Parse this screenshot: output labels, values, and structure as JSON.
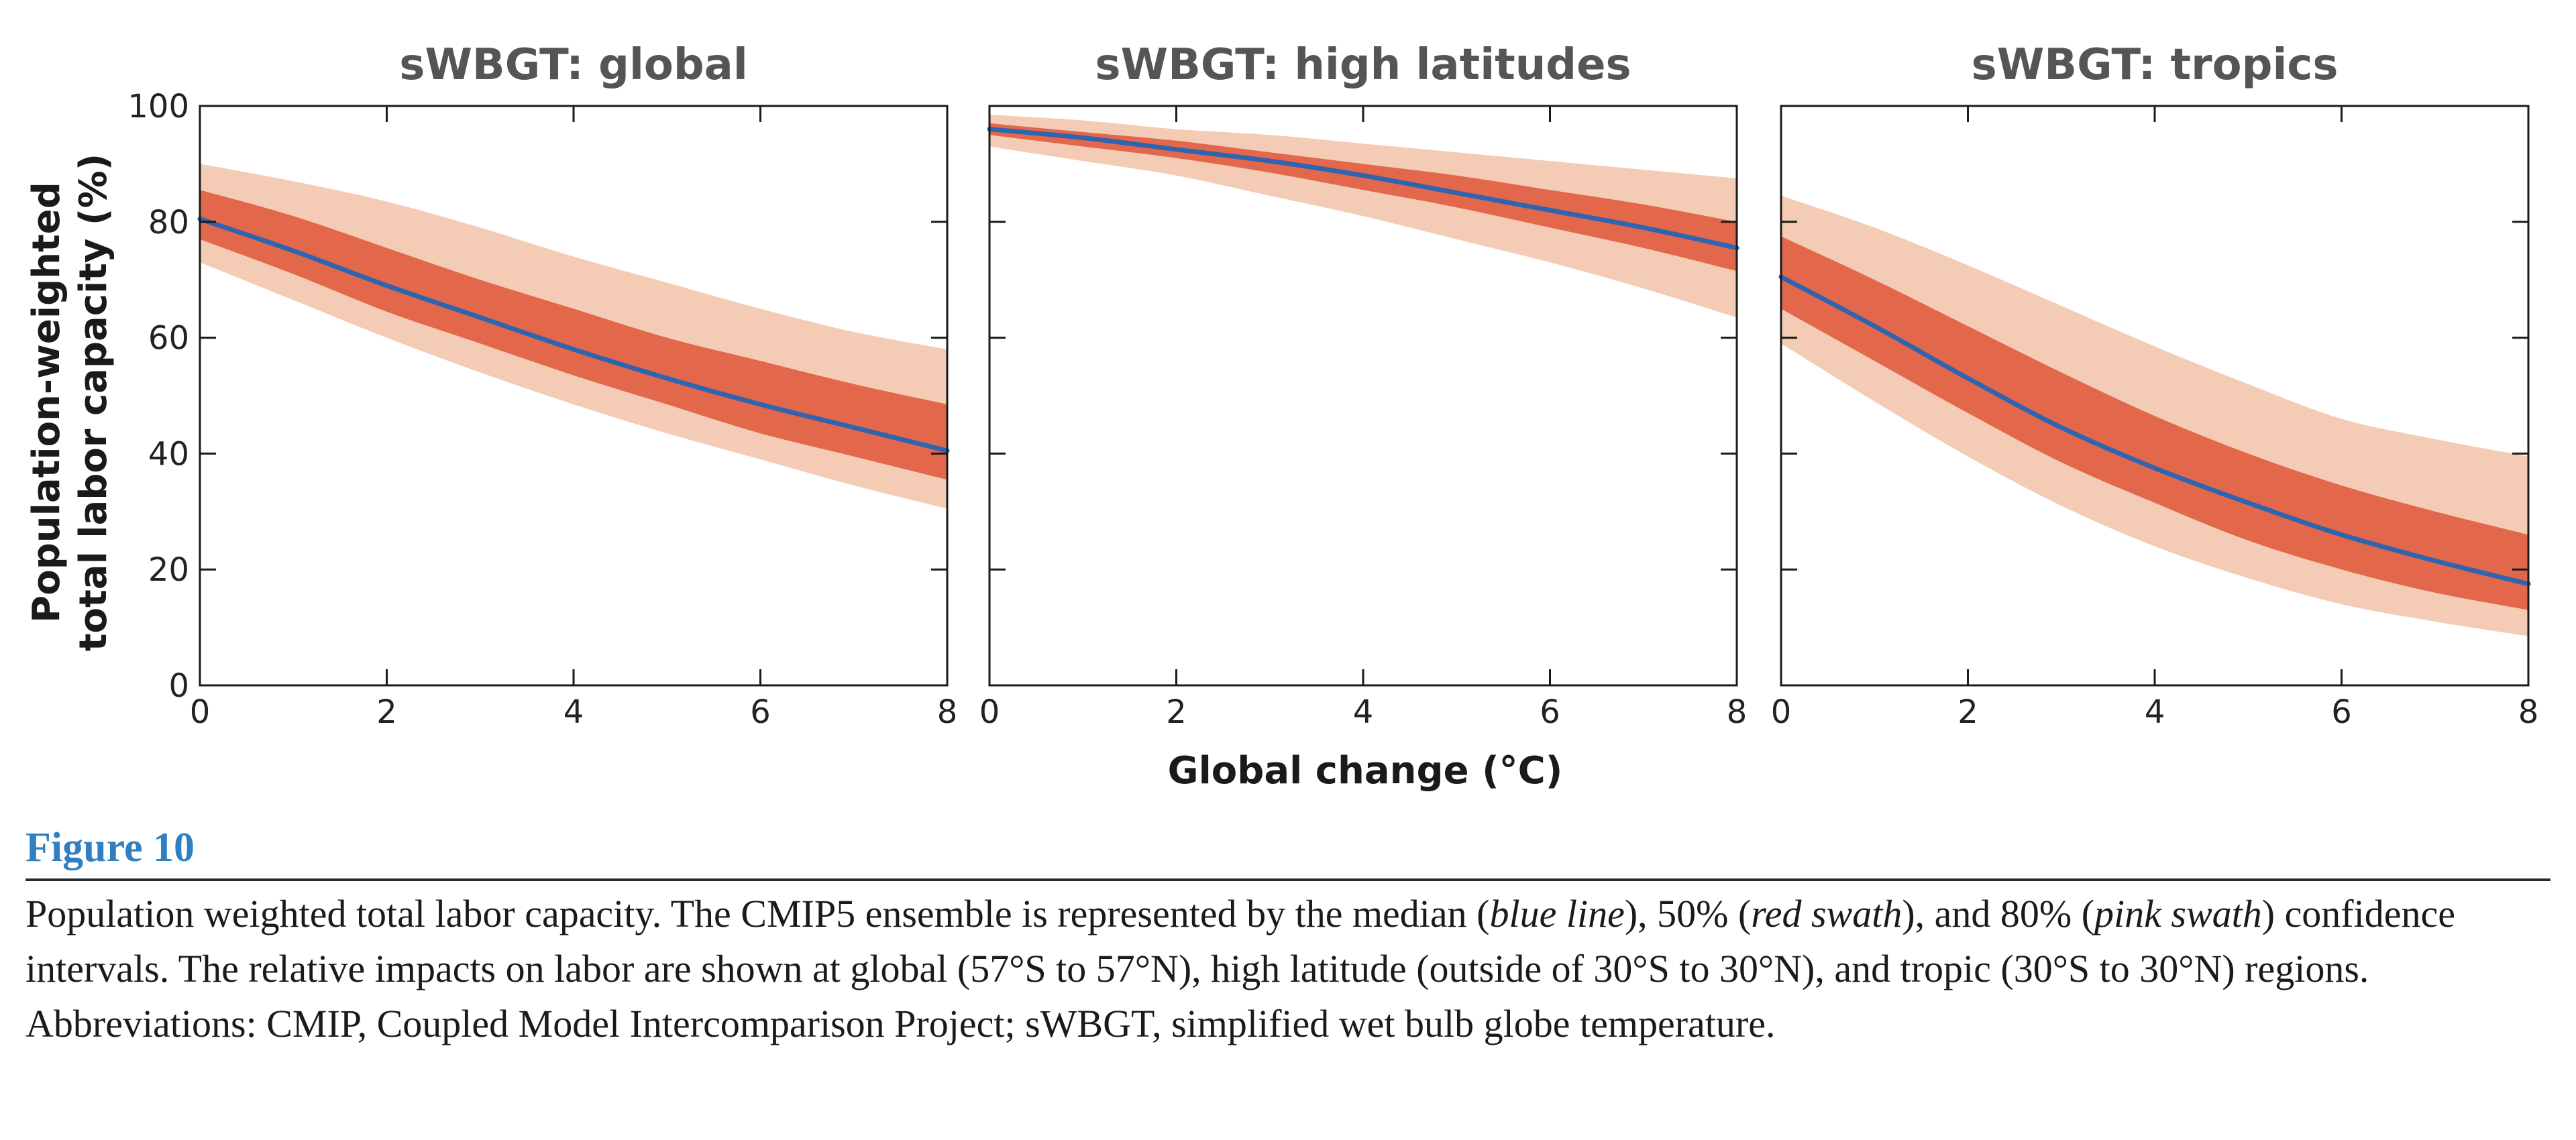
{
  "chart_data": [
    {
      "type": "area",
      "title": "sWBGT: global",
      "x": [
        0,
        1,
        2,
        3,
        4,
        5,
        6,
        7,
        8
      ],
      "xlim": [
        0,
        8
      ],
      "ylim": [
        0,
        100
      ],
      "xticks": [
        "0",
        "2",
        "4",
        "6",
        "8"
      ],
      "yticks": [
        "0",
        "20",
        "40",
        "60",
        "80",
        "100"
      ],
      "series": [
        {
          "name": "median",
          "values": [
            80.5,
            75,
            69,
            63.5,
            58,
            53,
            48.5,
            44.5,
            40.5
          ]
        },
        {
          "name": "50% low",
          "values": [
            77,
            71,
            64.5,
            59,
            53.5,
            48.5,
            43.5,
            39.5,
            35.5
          ]
        },
        {
          "name": "50% high",
          "values": [
            85.5,
            81,
            75.5,
            70,
            65,
            60,
            56,
            52,
            48.5
          ]
        },
        {
          "name": "80% low",
          "values": [
            73,
            66.5,
            60,
            54,
            48.5,
            43.5,
            39,
            34.5,
            30.5
          ]
        },
        {
          "name": "80% high",
          "values": [
            90,
            87,
            83.5,
            79,
            74,
            69.5,
            65,
            61,
            58
          ]
        }
      ]
    },
    {
      "type": "area",
      "title": "sWBGT: high latitudes",
      "x": [
        0,
        1,
        2,
        3,
        4,
        5,
        6,
        7,
        8
      ],
      "xlim": [
        0,
        8
      ],
      "ylim": [
        0,
        100
      ],
      "xticks": [
        "0",
        "2",
        "4",
        "6",
        "8"
      ],
      "series": [
        {
          "name": "median",
          "values": [
            96,
            94.5,
            92.5,
            90.5,
            88,
            85,
            82,
            79,
            75.5
          ]
        },
        {
          "name": "50% low",
          "values": [
            95,
            93,
            91,
            88.5,
            85.5,
            82.5,
            79,
            75.5,
            71.5
          ]
        },
        {
          "name": "50% high",
          "values": [
            97,
            95.5,
            94,
            92,
            90,
            88,
            85.5,
            83,
            80
          ]
        },
        {
          "name": "80% low",
          "values": [
            93,
            90.5,
            88,
            84.5,
            81,
            77,
            73,
            68.5,
            63.5
          ]
        },
        {
          "name": "80% high",
          "values": [
            98.5,
            97.5,
            96,
            95,
            93.5,
            92,
            90.5,
            89,
            87.5
          ]
        }
      ]
    },
    {
      "type": "area",
      "title": "sWBGT: tropics",
      "x": [
        0,
        1,
        2,
        3,
        4,
        5,
        6,
        7,
        8
      ],
      "xlim": [
        0,
        8
      ],
      "ylim": [
        0,
        100
      ],
      "xticks": [
        "0",
        "2",
        "4",
        "6",
        "8"
      ],
      "series": [
        {
          "name": "median",
          "values": [
            70.5,
            62,
            53,
            44.5,
            37.5,
            31.5,
            26,
            21.5,
            17.5
          ]
        },
        {
          "name": "50% low",
          "values": [
            65,
            56,
            47,
            38.5,
            31.5,
            25,
            20,
            16,
            13
          ]
        },
        {
          "name": "50% high",
          "values": [
            77.5,
            70,
            62,
            54,
            46.5,
            40,
            34.5,
            30,
            26
          ]
        },
        {
          "name": "80% low",
          "values": [
            59,
            49,
            39.5,
            31,
            24,
            18.5,
            14,
            11,
            8.5
          ]
        },
        {
          "name": "80% high",
          "values": [
            84.5,
            79,
            72.5,
            65.5,
            58.5,
            52,
            46,
            42.5,
            39.5
          ]
        }
      ]
    }
  ],
  "colors": {
    "median": "#2e64b0",
    "band50": "#e2674b",
    "band80": "#f4cbb5",
    "frame": "#1a1a1a"
  },
  "axes": {
    "ylabel_line1": "Population-weighted",
    "ylabel_line2": "total labor capacity (%)",
    "xlabel": "Global change (°C)"
  },
  "figure": {
    "label": "Figure 10",
    "caption_parts": [
      {
        "text": "Population weighted total labor capacity. The CMIP5 ensemble is represented by the median (",
        "italic": false
      },
      {
        "text": "blue line",
        "italic": true
      },
      {
        "text": "), 50% (",
        "italic": false
      },
      {
        "text": "red swath",
        "italic": true
      },
      {
        "text": "), and 80% (",
        "italic": false
      },
      {
        "text": "pink swath",
        "italic": true
      },
      {
        "text": ") confidence intervals. The relative impacts on labor are shown at global (57°S to 57°N), high latitude (outside of 30°S to 30°N), and tropic (30°S to 30°N) regions. Abbreviations: CMIP, Coupled Model Intercomparison Project; sWBGT, simplified wet bulb globe temperature.",
        "italic": false
      }
    ]
  }
}
